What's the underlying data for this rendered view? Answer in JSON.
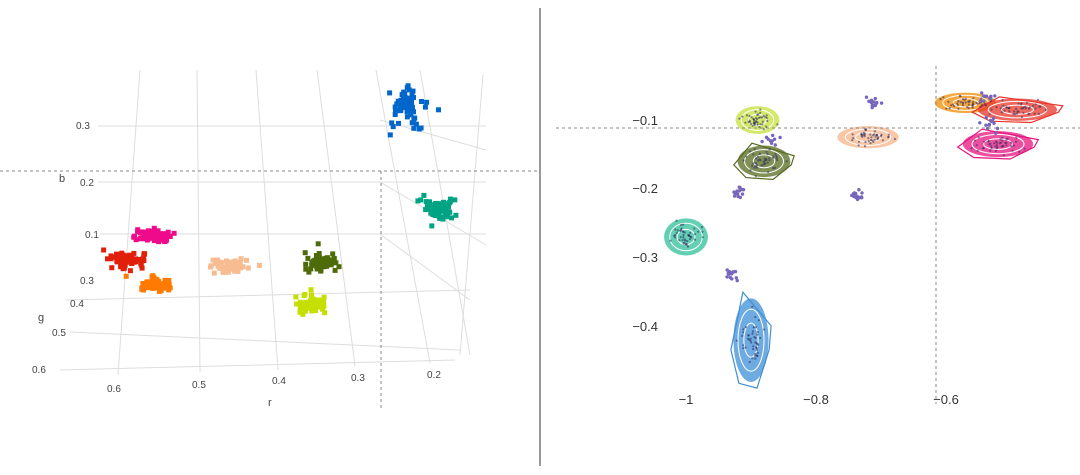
{
  "panels": {
    "left": {
      "axis_titles": {
        "x": "r",
        "y": "g",
        "z": "b"
      },
      "r_ticks": [
        "0.6",
        "0.5",
        "0.4",
        "0.3",
        "0.2"
      ],
      "g_ticks": [
        "0.3",
        "0.4",
        "0.5",
        "0.6"
      ],
      "b_ticks": [
        "0.3",
        "0.2",
        "0.1"
      ]
    },
    "right": {
      "x_ticks": [
        "−1",
        "−0.8",
        "−0.6"
      ],
      "y_ticks": [
        "−0.1",
        "−0.2",
        "−0.3",
        "−0.4"
      ]
    }
  },
  "chart_data": [
    {
      "type": "scatter",
      "subtype": "3d",
      "title": "",
      "xlabel": "r",
      "ylabel": "g",
      "zlabel": "b",
      "xlim": [
        0.65,
        0.15
      ],
      "ylim": [
        0.25,
        0.65
      ],
      "zlim": [
        0.0,
        0.35
      ],
      "grid": true,
      "marker": "square",
      "crosshair": true,
      "series": [
        {
          "color": "#0066cc",
          "center": [
            0.28,
            0.27,
            0.32
          ]
        },
        {
          "color": "#00a383",
          "center": [
            0.16,
            0.3,
            0.15
          ]
        },
        {
          "color": "#ee0a8a",
          "center": [
            0.56,
            0.33,
            0.1
          ]
        },
        {
          "color": "#e0200a",
          "center": [
            0.61,
            0.36,
            0.06
          ]
        },
        {
          "color": "#ff7a00",
          "center": [
            0.6,
            0.4,
            0.02
          ]
        },
        {
          "color": "#f8bc92",
          "center": [
            0.48,
            0.36,
            0.05
          ]
        },
        {
          "color": "#4e6b0a",
          "center": [
            0.33,
            0.32,
            0.07
          ]
        },
        {
          "color": "#c5e000",
          "center": [
            0.36,
            0.44,
            0.02
          ]
        }
      ]
    },
    {
      "type": "scatter",
      "title": "",
      "xlabel": "",
      "ylabel": "",
      "xlim": [
        -1.04,
        -0.38
      ],
      "ylim": [
        -0.47,
        -0.05
      ],
      "xticks": [
        -1,
        -0.8,
        -0.6
      ],
      "yticks": [
        -0.1,
        -0.2,
        -0.3,
        -0.4
      ],
      "grid": false,
      "crosshair": {
        "x": -0.6,
        "y": -0.11
      },
      "clusters": [
        {
          "color": "#3d8fd6",
          "cx": -0.9,
          "cy": -0.42,
          "sx": 0.02,
          "sy": 0.045,
          "hull": true
        },
        {
          "color": "#2fbf9a",
          "cx": -1.0,
          "cy": -0.27,
          "sx": 0.025,
          "sy": 0.02
        },
        {
          "color": "#c6e03a",
          "cx": -0.89,
          "cy": -0.1,
          "sx": 0.025,
          "sy": 0.015
        },
        {
          "color": "#556b1f",
          "cx": -0.88,
          "cy": -0.16,
          "sx": 0.03,
          "sy": 0.017,
          "hull": true
        },
        {
          "color": "#f5b48a",
          "cx": -0.72,
          "cy": -0.125,
          "sx": 0.035,
          "sy": 0.012
        },
        {
          "color": "#f28a00",
          "cx": -0.57,
          "cy": -0.075,
          "sx": 0.035,
          "sy": 0.011
        },
        {
          "color": "#e8352a",
          "cx": -0.49,
          "cy": -0.085,
          "sx": 0.045,
          "sy": 0.012,
          "hull": true
        },
        {
          "color": "#e6147f",
          "cx": -0.52,
          "cy": -0.135,
          "sx": 0.04,
          "sy": 0.014,
          "hull": true
        }
      ],
      "small_points": {
        "color": "#7766bb",
        "groups": [
          {
            "cx": -0.71,
            "cy": -0.075,
            "sx": 0.008,
            "sy": 0.004,
            "n": 14
          },
          {
            "cx": -0.535,
            "cy": -0.07,
            "sx": 0.008,
            "sy": 0.004,
            "n": 10
          },
          {
            "cx": -0.53,
            "cy": -0.105,
            "sx": 0.008,
            "sy": 0.005,
            "n": 14
          },
          {
            "cx": -0.87,
            "cy": -0.128,
            "sx": 0.007,
            "sy": 0.004,
            "n": 10
          },
          {
            "cx": -0.92,
            "cy": -0.205,
            "sx": 0.005,
            "sy": 0.005,
            "n": 14
          },
          {
            "cx": -0.74,
            "cy": -0.21,
            "sx": 0.008,
            "sy": 0.004,
            "n": 14
          },
          {
            "cx": -0.93,
            "cy": -0.325,
            "sx": 0.005,
            "sy": 0.005,
            "n": 14
          }
        ]
      }
    }
  ]
}
